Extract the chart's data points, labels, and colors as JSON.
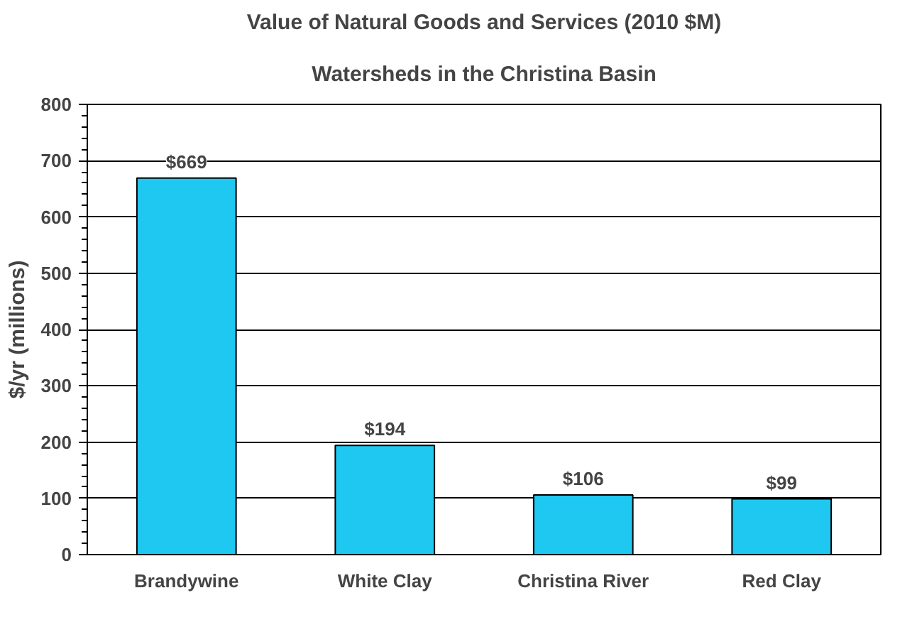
{
  "chart_data": {
    "type": "bar",
    "title": "Value of Natural Goods and Services (2010 $M)",
    "subtitle": "Watersheds in the Christina Basin",
    "ylabel": "$/yr (millions)",
    "categories": [
      "Brandywine",
      "White Clay",
      "Christina River",
      "Red Clay"
    ],
    "values": [
      669,
      194,
      106,
      99
    ],
    "color": "#1ec8f0",
    "value_labels": [
      "$669",
      "$194",
      "$106",
      "$99"
    ],
    "ylim": [
      0,
      800
    ],
    "yticks": [
      0,
      100,
      200,
      300,
      400,
      500,
      600,
      700,
      800
    ],
    "grid": "y"
  }
}
